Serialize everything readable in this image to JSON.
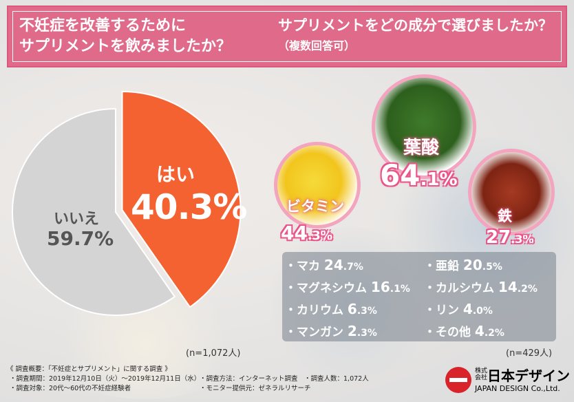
{
  "header": {
    "left_line1": "不妊症を改善するために",
    "left_line2": "サプリメントを飲みましたか？",
    "right_line1": "サプリメントをどの成分で選びましたか？",
    "right_line2": "（複数回答可）"
  },
  "chart_data": [
    {
      "type": "pie",
      "title": "不妊症を改善するためにサプリメントを飲みましたか？",
      "categories": [
        "はい",
        "いいえ"
      ],
      "values": [
        40.3,
        59.7
      ],
      "colors": [
        "#f36230",
        "#d4d4d4"
      ],
      "labels": {
        "yes_name": "はい",
        "yes_value": "40.3%",
        "no_name": "いいえ",
        "no_value": "59.7%"
      },
      "n_label": "(n=1,072人)"
    },
    {
      "type": "bar",
      "title": "サプリメントをどの成分で選びましたか？",
      "subtitle": "（複数回答可）",
      "categories": [
        "葉酸",
        "ビタミン",
        "鉄",
        "マカ",
        "亜鉛",
        "マグネシウム",
        "カルシウム",
        "カリウム",
        "リン",
        "マンガン",
        "その他"
      ],
      "values": [
        64.1,
        44.3,
        27.3,
        24.7,
        20.5,
        16.1,
        14.2,
        6.3,
        4.0,
        2.3,
        4.2
      ],
      "n_label": "(n=429人)"
    }
  ],
  "featured": {
    "folic": {
      "name": "葉酸",
      "int": "64",
      "dec": ".1%"
    },
    "vitamin": {
      "name": "ビタミン",
      "int": "44",
      "dec": ".3%"
    },
    "iron": {
      "name": "鉄",
      "int": "27",
      "dec": ".3%"
    }
  },
  "list": [
    {
      "name": "・マカ",
      "int": "24",
      "dec": ".7%"
    },
    {
      "name": "・亜鉛",
      "int": "20",
      "dec": ".5%"
    },
    {
      "name": "・マグネシウム",
      "int": "16",
      "dec": ".1%"
    },
    {
      "name": "・カルシウム",
      "int": "14",
      "dec": ".2%"
    },
    {
      "name": "・カリウム",
      "int": "6",
      "dec": ".3%"
    },
    {
      "name": "・リン",
      "int": "4",
      "dec": ".0%"
    },
    {
      "name": "・マンガン",
      "int": "2",
      "dec": ".3%"
    },
    {
      "name": "・その他",
      "int": "4",
      "dec": ".2%"
    }
  ],
  "footer": {
    "title": "《 調査概要：「不妊症とサプリメント」に関する調査 》",
    "period": "・調査期間：2019年12月10日（火）〜2019年12月11日（水）",
    "method": "・調査方法：インターネット調査",
    "count": "・調査人数：1,072人",
    "target": "・調査対象：20代〜60代の不妊症経験者",
    "provider": "・モニター提供元：ゼネラルリサーチ"
  },
  "logo": {
    "small": "株式会社",
    "name": "日本デザイン",
    "en": "JAPAN DESIGN Co.,Ltd."
  }
}
